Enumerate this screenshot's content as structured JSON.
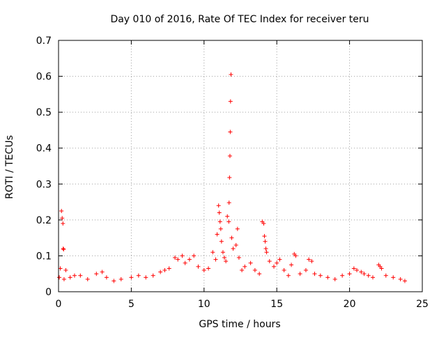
{
  "chart_data": {
    "type": "scatter",
    "title": "Day 010 of 2016, Rate Of TEC Index for receiver teru",
    "xlabel": "GPS time / hours",
    "ylabel": "ROTI / TECUs",
    "xlim": [
      0,
      25
    ],
    "ylim": [
      0,
      0.7
    ],
    "xticks": [
      0,
      5,
      10,
      15,
      20,
      25
    ],
    "yticks": [
      0,
      0.1,
      0.2,
      0.3,
      0.4,
      0.5,
      0.6,
      0.7
    ],
    "xtick_labels": [
      "0",
      "5",
      "10",
      "15",
      "20",
      "25"
    ],
    "ytick_labels": [
      "0",
      "0.1",
      "0.2",
      "0.3",
      "0.4",
      "0.5",
      "0.6",
      "0.7"
    ],
    "grid": true,
    "marker": "+",
    "marker_color": "#ff0000",
    "series": [
      {
        "name": "ROTI",
        "x": [
          0.05,
          0.12,
          0.2,
          0.25,
          0.3,
          0.32,
          0.35,
          0.38,
          0.5,
          0.8,
          1.1,
          1.5,
          2.0,
          2.6,
          3.0,
          3.3,
          3.8,
          4.3,
          5.0,
          5.5,
          6.0,
          6.5,
          7.0,
          7.3,
          7.6,
          8.0,
          8.2,
          8.5,
          8.7,
          9.0,
          9.3,
          9.6,
          10.0,
          10.3,
          10.6,
          10.8,
          10.9,
          11.0,
          11.05,
          11.1,
          11.15,
          11.2,
          11.3,
          11.4,
          11.5,
          11.6,
          11.7,
          11.72,
          11.75,
          11.78,
          11.8,
          11.82,
          11.85,
          11.9,
          12.0,
          12.2,
          12.3,
          12.4,
          12.6,
          12.8,
          13.2,
          13.5,
          13.8,
          14.0,
          14.1,
          14.15,
          14.2,
          14.25,
          14.3,
          14.5,
          14.8,
          15.0,
          15.2,
          15.5,
          15.8,
          16.0,
          16.2,
          16.3,
          16.6,
          17.0,
          17.2,
          17.4,
          17.6,
          18.0,
          18.5,
          19.0,
          19.5,
          20.0,
          20.3,
          20.5,
          20.8,
          21.0,
          21.3,
          21.6,
          22.0,
          22.1,
          22.2,
          22.5,
          23.0,
          23.5,
          23.8
        ],
        "y": [
          0.04,
          0.065,
          0.225,
          0.205,
          0.19,
          0.12,
          0.118,
          0.035,
          0.06,
          0.04,
          0.045,
          0.045,
          0.035,
          0.05,
          0.055,
          0.04,
          0.03,
          0.035,
          0.04,
          0.045,
          0.04,
          0.045,
          0.055,
          0.06,
          0.065,
          0.095,
          0.09,
          0.1,
          0.08,
          0.09,
          0.1,
          0.07,
          0.06,
          0.065,
          0.11,
          0.09,
          0.16,
          0.24,
          0.22,
          0.195,
          0.175,
          0.14,
          0.11,
          0.095,
          0.085,
          0.21,
          0.195,
          0.248,
          0.318,
          0.378,
          0.445,
          0.53,
          0.605,
          0.15,
          0.12,
          0.13,
          0.175,
          0.095,
          0.06,
          0.07,
          0.08,
          0.06,
          0.05,
          0.195,
          0.19,
          0.155,
          0.14,
          0.12,
          0.11,
          0.085,
          0.07,
          0.08,
          0.09,
          0.06,
          0.045,
          0.075,
          0.105,
          0.1,
          0.05,
          0.06,
          0.09,
          0.085,
          0.05,
          0.045,
          0.04,
          0.035,
          0.045,
          0.05,
          0.065,
          0.06,
          0.055,
          0.05,
          0.045,
          0.04,
          0.075,
          0.07,
          0.065,
          0.045,
          0.04,
          0.035,
          0.03
        ]
      }
    ]
  }
}
